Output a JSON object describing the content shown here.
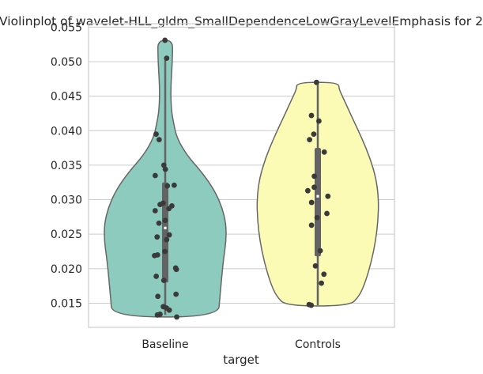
{
  "chart_data": {
    "type": "violin",
    "title": "Violinplot of wavelet-HLL_gldm_SmallDependenceLowGrayLevelEmphasis for 2",
    "xlabel": "target",
    "ylabel": "",
    "categories": [
      "Baseline",
      "Controls"
    ],
    "ylim": [
      0.0115,
      0.0555
    ],
    "yticks": [
      0.015,
      0.02,
      0.025,
      0.03,
      0.035,
      0.04,
      0.045,
      0.05,
      0.055
    ],
    "ytick_labels": [
      "0.015",
      "0.020",
      "0.025",
      "0.030",
      "0.035",
      "0.040",
      "0.045",
      "0.050",
      "0.055"
    ],
    "grid": "horizontal",
    "colors": {
      "Baseline": "#8dcbbe",
      "Controls": "#fbfbb5",
      "points": "#3a3a3a",
      "outline": "#666666",
      "grid": "#cccccc"
    },
    "series": [
      {
        "name": "Baseline",
        "box": {
          "whisker_low": 0.0133,
          "q1": 0.018,
          "median": 0.0259,
          "q3": 0.0325,
          "whisker_high": 0.0503
        },
        "violin_range": [
          0.013,
          0.0531
        ],
        "density": [
          [
            0.013,
            0.87
          ],
          [
            0.016,
            0.9
          ],
          [
            0.019,
            0.93
          ],
          [
            0.0215,
            0.96
          ],
          [
            0.024,
            1.0
          ],
          [
            0.0265,
            1.0
          ],
          [
            0.029,
            0.93
          ],
          [
            0.0315,
            0.8
          ],
          [
            0.034,
            0.6
          ],
          [
            0.0365,
            0.35
          ],
          [
            0.039,
            0.19
          ],
          [
            0.041,
            0.14
          ],
          [
            0.043,
            0.1
          ],
          [
            0.046,
            0.09
          ],
          [
            0.049,
            0.11
          ],
          [
            0.051,
            0.12
          ],
          [
            0.0531,
            0.12
          ]
        ],
        "points": [
          0.0531,
          0.0505,
          0.0395,
          0.0387,
          0.035,
          0.0344,
          0.0335,
          0.0321,
          0.032,
          0.0295,
          0.0293,
          0.0291,
          0.0287,
          0.0284,
          0.027,
          0.0266,
          0.0249,
          0.0246,
          0.0242,
          0.0225,
          0.022,
          0.0219,
          0.0201,
          0.0199,
          0.0189,
          0.0183,
          0.0163,
          0.016,
          0.0145,
          0.0143,
          0.014,
          0.0134,
          0.0133,
          0.013
        ]
      },
      {
        "name": "Controls",
        "box": {
          "whisker_low": 0.0147,
          "q1": 0.0218,
          "median": 0.0305,
          "q3": 0.0375,
          "whisker_high": 0.047
        },
        "violin_range": [
          0.0146,
          0.047
        ],
        "density": [
          [
            0.0146,
            0.52
          ],
          [
            0.016,
            0.68
          ],
          [
            0.018,
            0.78
          ],
          [
            0.021,
            0.88
          ],
          [
            0.024,
            0.95
          ],
          [
            0.027,
            0.99
          ],
          [
            0.03,
            1.0
          ],
          [
            0.033,
            0.96
          ],
          [
            0.036,
            0.86
          ],
          [
            0.039,
            0.72
          ],
          [
            0.042,
            0.56
          ],
          [
            0.0445,
            0.43
          ],
          [
            0.046,
            0.35
          ],
          [
            0.047,
            0.34
          ]
        ],
        "points": [
          0.047,
          0.0422,
          0.0414,
          0.0395,
          0.0387,
          0.0369,
          0.0334,
          0.0318,
          0.0313,
          0.0305,
          0.0296,
          0.028,
          0.0274,
          0.0263,
          0.0226,
          0.0204,
          0.0192,
          0.0179,
          0.0148,
          0.0147
        ]
      }
    ]
  }
}
